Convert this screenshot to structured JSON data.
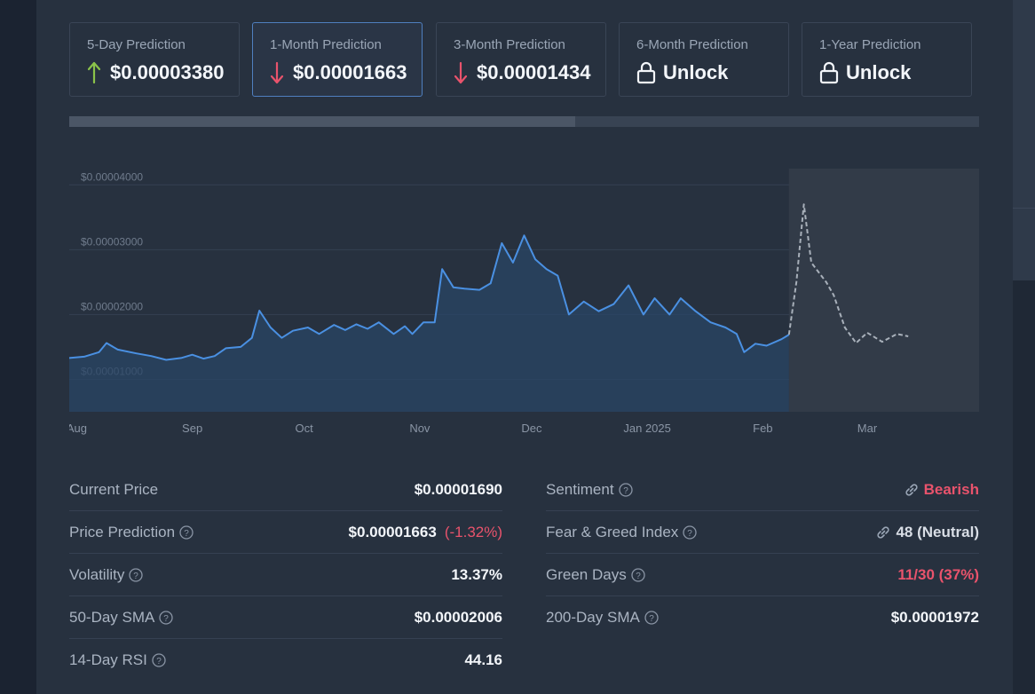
{
  "colors": {
    "accent": "#4a90e2",
    "up": "#8bc34a",
    "down": "#e9536c",
    "bg": "#27313f"
  },
  "cards": [
    {
      "label": "5-Day Prediction",
      "value": "$0.00003380",
      "icon": "arrow-up-icon",
      "active": false
    },
    {
      "label": "1-Month Prediction",
      "value": "$0.00001663",
      "icon": "arrow-down-icon",
      "active": true
    },
    {
      "label": "3-Month Prediction",
      "value": "$0.00001434",
      "icon": "arrow-down-icon",
      "active": false
    },
    {
      "label": "6-Month Prediction",
      "value": "Unlock",
      "icon": "lock-icon",
      "active": false
    },
    {
      "label": "1-Year Prediction",
      "value": "Unlock",
      "icon": "lock-icon",
      "active": false
    }
  ],
  "progress": {
    "value": 0.556
  },
  "chart_data": {
    "type": "line",
    "x_ticks": [
      "Aug",
      "Sep",
      "Oct",
      "Nov",
      "Dec",
      "Jan 2025",
      "Feb",
      "Mar"
    ],
    "y_ticks": [
      "$0.00004000",
      "$0.00003000",
      "$0.00002000",
      "$0.00001000"
    ],
    "ylim": [
      5e-06,
      4.25e-05
    ],
    "grid": true,
    "series": [
      {
        "style": "solid-area",
        "color": "#4a90e2",
        "points": [
          [
            "2024-07-30",
            1.33e-05
          ],
          [
            "2024-08-03",
            1.35e-05
          ],
          [
            "2024-08-07",
            1.42e-05
          ],
          [
            "2024-08-09",
            1.56e-05
          ],
          [
            "2024-08-12",
            1.46e-05
          ],
          [
            "2024-08-17",
            1.4e-05
          ],
          [
            "2024-08-21",
            1.36e-05
          ],
          [
            "2024-08-25",
            1.3e-05
          ],
          [
            "2024-08-29",
            1.33e-05
          ],
          [
            "2024-09-01",
            1.38e-05
          ],
          [
            "2024-09-04",
            1.32e-05
          ],
          [
            "2024-09-07",
            1.36e-05
          ],
          [
            "2024-09-10",
            1.48e-05
          ],
          [
            "2024-09-14",
            1.5e-05
          ],
          [
            "2024-09-17",
            1.64e-05
          ],
          [
            "2024-09-19",
            2.06e-05
          ],
          [
            "2024-09-22",
            1.8e-05
          ],
          [
            "2024-09-25",
            1.64e-05
          ],
          [
            "2024-09-28",
            1.75e-05
          ],
          [
            "2024-10-02",
            1.8e-05
          ],
          [
            "2024-10-05",
            1.7e-05
          ],
          [
            "2024-10-09",
            1.84e-05
          ],
          [
            "2024-10-12",
            1.76e-05
          ],
          [
            "2024-10-15",
            1.85e-05
          ],
          [
            "2024-10-18",
            1.78e-05
          ],
          [
            "2024-10-21",
            1.88e-05
          ],
          [
            "2024-10-25",
            1.7e-05
          ],
          [
            "2024-10-28",
            1.82e-05
          ],
          [
            "2024-10-30",
            1.7e-05
          ],
          [
            "2024-11-02",
            1.88e-05
          ],
          [
            "2024-11-05",
            1.88e-05
          ],
          [
            "2024-11-07",
            2.7e-05
          ],
          [
            "2024-11-10",
            2.42e-05
          ],
          [
            "2024-11-13",
            2.4e-05
          ],
          [
            "2024-11-17",
            2.38e-05
          ],
          [
            "2024-11-20",
            2.48e-05
          ],
          [
            "2024-11-23",
            3.1e-05
          ],
          [
            "2024-11-26",
            2.8e-05
          ],
          [
            "2024-11-29",
            3.22e-05
          ],
          [
            "2024-12-02",
            2.85e-05
          ],
          [
            "2024-12-05",
            2.7e-05
          ],
          [
            "2024-12-08",
            2.6e-05
          ],
          [
            "2024-12-11",
            2e-05
          ],
          [
            "2024-12-15",
            2.2e-05
          ],
          [
            "2024-12-19",
            2.05e-05
          ],
          [
            "2024-12-23",
            2.16e-05
          ],
          [
            "2024-12-27",
            2.45e-05
          ],
          [
            "2024-12-31",
            2e-05
          ],
          [
            "2025-01-03",
            2.25e-05
          ],
          [
            "2025-01-07",
            2e-05
          ],
          [
            "2025-01-10",
            2.25e-05
          ],
          [
            "2025-01-14",
            2.05e-05
          ],
          [
            "2025-01-18",
            1.88e-05
          ],
          [
            "2025-01-22",
            1.8e-05
          ],
          [
            "2025-01-25",
            1.7e-05
          ],
          [
            "2025-01-27",
            1.42e-05
          ],
          [
            "2025-01-30",
            1.55e-05
          ],
          [
            "2025-02-02",
            1.52e-05
          ],
          [
            "2025-02-06",
            1.62e-05
          ],
          [
            "2025-02-08",
            1.69e-05
          ]
        ]
      },
      {
        "style": "dashed-forecast",
        "color": "#a8b0ba",
        "points": [
          [
            "2025-02-08",
            1.69e-05
          ],
          [
            "2025-02-10",
            2.5e-05
          ],
          [
            "2025-02-12",
            3.7e-05
          ],
          [
            "2025-02-14",
            2.8e-05
          ],
          [
            "2025-02-18",
            2.5e-05
          ],
          [
            "2025-02-20",
            2.3e-05
          ],
          [
            "2025-02-23",
            1.8e-05
          ],
          [
            "2025-02-26",
            1.56e-05
          ],
          [
            "2025-03-01",
            1.72e-05
          ],
          [
            "2025-03-05",
            1.58e-05
          ],
          [
            "2025-03-09",
            1.7e-05
          ],
          [
            "2025-03-12",
            1.663e-05
          ]
        ]
      }
    ]
  },
  "stats_left": [
    {
      "key": "Current Price",
      "help": false,
      "value": "$0.00001690",
      "extra": ""
    },
    {
      "key": "Price Prediction",
      "help": true,
      "value": "$0.00001663",
      "extra": "(-1.32%)"
    },
    {
      "key": "Volatility",
      "help": true,
      "value": "13.37%",
      "extra": ""
    },
    {
      "key": "50-Day SMA",
      "help": true,
      "value": "$0.00002006",
      "extra": ""
    },
    {
      "key": "14-Day RSI",
      "help": true,
      "value": "44.16",
      "extra": ""
    }
  ],
  "stats_right": [
    {
      "key": "Sentiment",
      "help": true,
      "value": "Bearish",
      "link": true,
      "red": true
    },
    {
      "key": "Fear & Greed Index",
      "help": true,
      "value": "48 (Neutral)",
      "link": true,
      "red": false
    },
    {
      "key": "Green Days",
      "help": true,
      "value": "11/30 (37%)",
      "link": false,
      "red": true
    },
    {
      "key": "200-Day SMA",
      "help": true,
      "value": "$0.00001972",
      "link": false,
      "red": false
    }
  ]
}
